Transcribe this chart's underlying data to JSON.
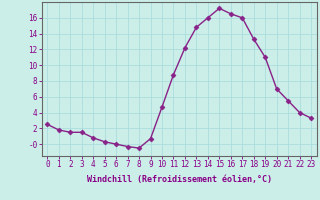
{
  "x": [
    0,
    1,
    2,
    3,
    4,
    5,
    6,
    7,
    8,
    9,
    10,
    11,
    12,
    13,
    14,
    15,
    16,
    17,
    18,
    19,
    20,
    21,
    22,
    23
  ],
  "y": [
    2.5,
    1.8,
    1.5,
    1.5,
    0.8,
    0.3,
    0.0,
    -0.3,
    -0.5,
    0.7,
    4.7,
    8.8,
    12.2,
    14.8,
    16.0,
    17.2,
    16.5,
    16.0,
    13.3,
    11.0,
    7.0,
    5.5,
    4.0,
    3.3
  ],
  "line_color": "#882288",
  "bg_color": "#cceee8",
  "grid_color": "#aadddd",
  "xlabel": "Windchill (Refroidissement éolien,°C)",
  "xlim": [
    -0.5,
    23.5
  ],
  "ylim": [
    -1.5,
    18
  ],
  "yticks": [
    0,
    2,
    4,
    6,
    8,
    10,
    12,
    14,
    16
  ],
  "ytick_labels": [
    "-0",
    "2",
    "4",
    "6",
    "8",
    "10",
    "12",
    "14",
    "16"
  ],
  "xtick_labels": [
    "0",
    "1",
    "2",
    "3",
    "4",
    "5",
    "6",
    "7",
    "8",
    "9",
    "10",
    "11",
    "12",
    "13",
    "14",
    "15",
    "16",
    "17",
    "18",
    "19",
    "20",
    "21",
    "22",
    "23"
  ],
  "marker": "D",
  "markersize": 2.5,
  "linewidth": 1.0,
  "spine_color": "#666666",
  "font_color": "#880088",
  "xlabel_fontsize": 6.0,
  "tick_fontsize": 5.5
}
